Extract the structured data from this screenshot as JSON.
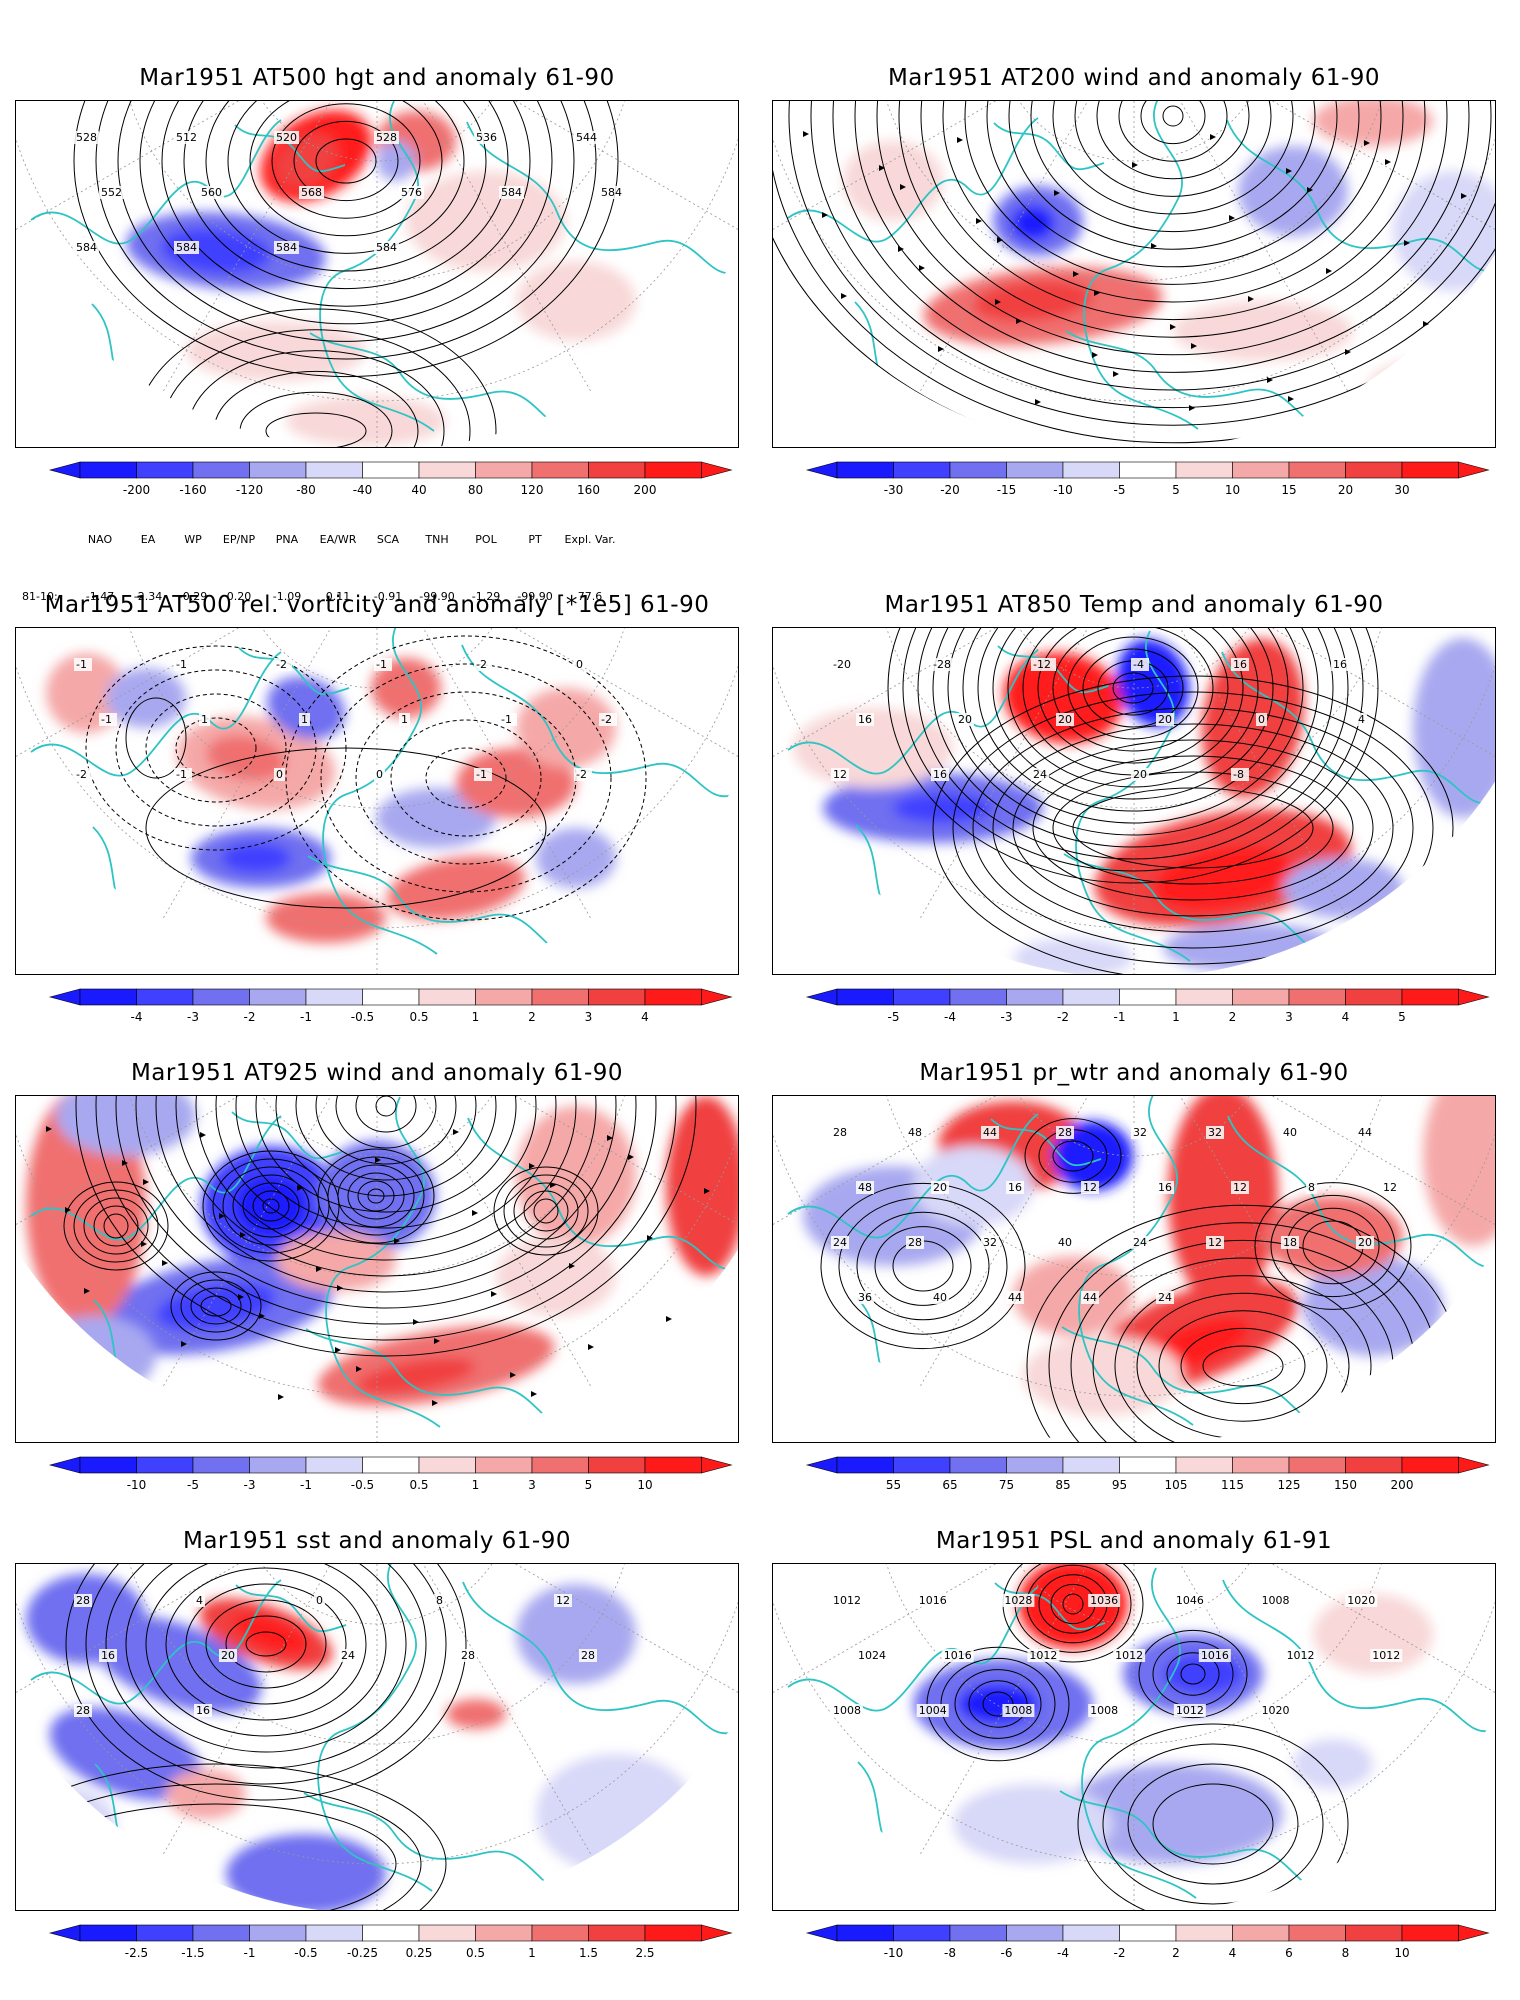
{
  "panels": [
    {
      "title": "Mar1951 AT500 hgt and anomaly 61-90",
      "colorbar": [
        "-200",
        "-160",
        "-120",
        "-80",
        "-40",
        "40",
        "80",
        "120",
        "160",
        "200"
      ],
      "contour_labels": [
        "528",
        "512",
        "520",
        "528",
        "536",
        "544",
        "552",
        "560",
        "568",
        "576",
        "584",
        "584",
        "584",
        "584",
        "584",
        "584"
      ]
    },
    {
      "title": "Mar1951 AT200 wind and anomaly 61-90",
      "colorbar": [
        "-30",
        "-20",
        "-15",
        "-10",
        "-5",
        "5",
        "10",
        "15",
        "20",
        "30"
      ],
      "contour_labels": []
    },
    {
      "title": "Mar1951 AT500 rel. vorticity and anomaly [*1e5] 61-90",
      "colorbar": [
        "-4",
        "-3",
        "-2",
        "-1",
        "-0.5",
        "0.5",
        "1",
        "2",
        "3",
        "4"
      ],
      "contour_labels": [
        "-1",
        "-1",
        "-2",
        "-1",
        "-2",
        "0",
        "-1",
        "1",
        "1",
        "1",
        "-1",
        "-2",
        "-2",
        "-1",
        "0",
        "0",
        "-1",
        "-2"
      ]
    },
    {
      "title": "Mar1951 AT850 Temp and anomaly 61-90",
      "colorbar": [
        "-5",
        "-4",
        "-3",
        "-2",
        "-1",
        "1",
        "2",
        "3",
        "4",
        "5"
      ],
      "contour_labels": [
        "-20",
        "-28",
        "-12",
        "-4",
        "16",
        "16",
        "16",
        "20",
        "20",
        "20",
        "0",
        "4",
        "12",
        "16",
        "24",
        "20",
        "-8"
      ]
    },
    {
      "title": "Mar1951 AT925 wind and anomaly 61-90",
      "colorbar": [
        "-10",
        "-5",
        "-3",
        "-1",
        "-0.5",
        "0.5",
        "1",
        "3",
        "5",
        "10"
      ],
      "contour_labels": []
    },
    {
      "title": "Mar1951 pr_wtr and anomaly 61-90",
      "colorbar": [
        "55",
        "65",
        "75",
        "85",
        "95",
        "105",
        "115",
        "125",
        "150",
        "200"
      ],
      "contour_labels": [
        "28",
        "48",
        "44",
        "28",
        "32",
        "32",
        "40",
        "44",
        "48",
        "20",
        "16",
        "12",
        "16",
        "12",
        "8",
        "12",
        "24",
        "28",
        "32",
        "40",
        "24",
        "12",
        "18",
        "20",
        "36",
        "40",
        "44",
        "44",
        "24"
      ]
    },
    {
      "title": "Mar1951 sst and anomaly 61-90",
      "colorbar": [
        "-2.5",
        "-1.5",
        "-1",
        "-0.5",
        "-0.25",
        "0.25",
        "0.5",
        "1",
        "1.5",
        "2.5"
      ],
      "contour_labels": [
        "28",
        "4",
        "0",
        "8",
        "12",
        "16",
        "20",
        "24",
        "28",
        "28",
        "28",
        "16"
      ]
    },
    {
      "title": "Mar1951 PSL and anomaly 61-91",
      "colorbar": [
        "-10",
        "-8",
        "-6",
        "-4",
        "-2",
        "2",
        "4",
        "6",
        "8",
        "10"
      ],
      "contour_labels": [
        "1012",
        "1016",
        "1028",
        "1036",
        "1046",
        "1008",
        "1020",
        "1024",
        "1016",
        "1012",
        "1012",
        "1016",
        "1012",
        "1012",
        "1008",
        "1004",
        "1008",
        "1008",
        "1012",
        "1020"
      ]
    }
  ],
  "index_table": {
    "headers": [
      "NAO",
      "EA",
      "WP",
      "EP/NP",
      "PNA",
      "EA/WR",
      "SCA",
      "TNH",
      "POL",
      "PT",
      "Expl. Var."
    ],
    "row_label": "81-10:",
    "values": [
      "-1.47",
      "-2.34",
      "-0.29",
      "0.20",
      "-1.09",
      "0.11",
      "-0.91",
      "-99.90",
      "-1.29",
      "-99.90",
      "77.6"
    ]
  },
  "colors": {
    "coast": "#2ec4c4",
    "blue_scale": [
      "#1a1aff",
      "#4040ff",
      "#7070f0",
      "#a8a8f0",
      "#d8d8f8"
    ],
    "red_scale": [
      "#f8d8d8",
      "#f5a8a8",
      "#f07070",
      "#f04040",
      "#ff1a1a"
    ]
  }
}
